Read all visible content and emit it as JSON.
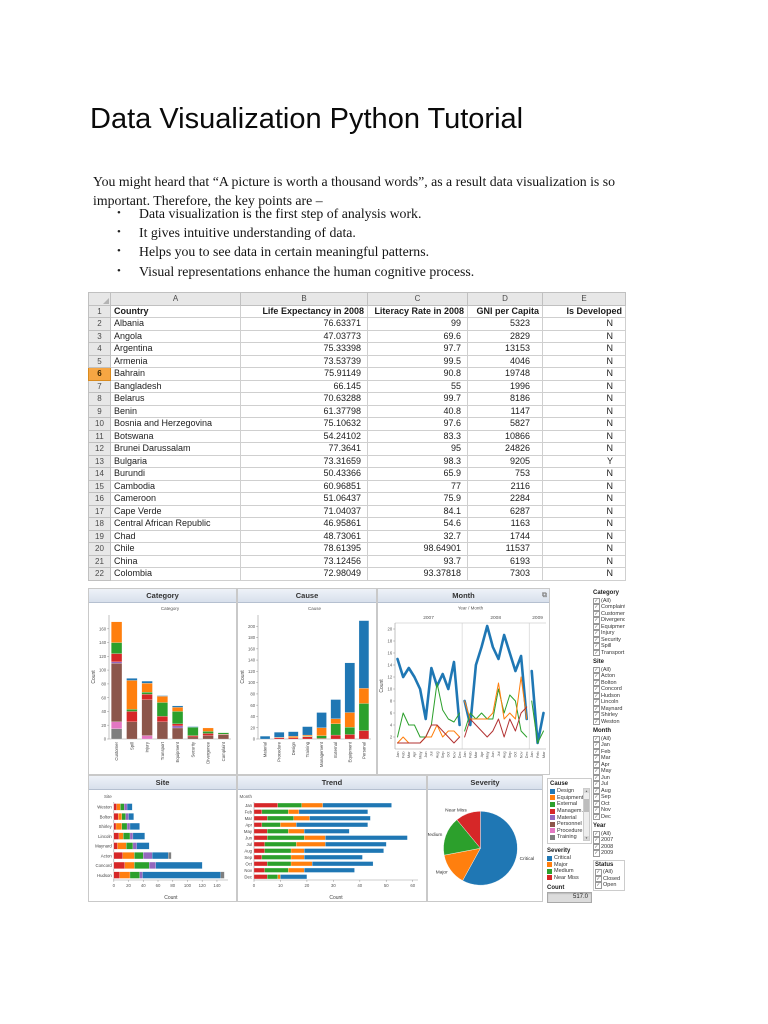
{
  "page": {
    "title": "Data Visualization Python Tutorial",
    "intro": "You might heard that “A picture is worth a thousand words”, as a result data visualization is so important. Therefore, the key points are –",
    "bullets": [
      "Data visualization is the first step of analysis work.",
      "It gives intuitive understanding of data.",
      "Helps you to see data in certain meaningful patterns.",
      "Visual representations enhance the human cognitive process."
    ]
  },
  "spreadsheet": {
    "column_letters": [
      "A",
      "B",
      "C",
      "D",
      "E"
    ],
    "headers": [
      "Country",
      "Life Expectancy in 2008",
      "Literacy Rate in 2008",
      "GNI per Capita",
      "Is Developed"
    ],
    "highlight_row": 6,
    "rows": [
      [
        "Albania",
        "76.63371",
        "99",
        "5323",
        "N"
      ],
      [
        "Angola",
        "47.03773",
        "69.6",
        "2829",
        "N"
      ],
      [
        "Argentina",
        "75.33398",
        "97.7",
        "13153",
        "N"
      ],
      [
        "Armenia",
        "73.53739",
        "99.5",
        "4046",
        "N"
      ],
      [
        "Bahrain",
        "75.91149",
        "90.8",
        "19748",
        "N"
      ],
      [
        "Bangladesh",
        "66.145",
        "55",
        "1996",
        "N"
      ],
      [
        "Belarus",
        "70.63288",
        "99.7",
        "8186",
        "N"
      ],
      [
        "Benin",
        "61.37798",
        "40.8",
        "1147",
        "N"
      ],
      [
        "Bosnia and Herzegovina",
        "75.10632",
        "97.6",
        "5827",
        "N"
      ],
      [
        "Botswana",
        "54.24102",
        "83.3",
        "10866",
        "N"
      ],
      [
        "Brunei Darussalam",
        "77.3641",
        "95",
        "24826",
        "N"
      ],
      [
        "Bulgaria",
        "73.31659",
        "98.3",
        "9205",
        "Y"
      ],
      [
        "Burundi",
        "50.43366",
        "65.9",
        "753",
        "N"
      ],
      [
        "Cambodia",
        "60.96851",
        "77",
        "2116",
        "N"
      ],
      [
        "Cameroon",
        "51.06437",
        "75.9",
        "2284",
        "N"
      ],
      [
        "Cape Verde",
        "71.04037",
        "84.1",
        "6287",
        "N"
      ],
      [
        "Central African Republic",
        "46.95861",
        "54.6",
        "1163",
        "N"
      ],
      [
        "Chad",
        "48.73061",
        "32.7",
        "1744",
        "N"
      ],
      [
        "Chile",
        "78.61395",
        "98.64901",
        "11537",
        "N"
      ],
      [
        "China",
        "73.12456",
        "93.7",
        "6193",
        "N"
      ],
      [
        "Colombia",
        "72.98049",
        "93.37818",
        "7303",
        "N"
      ]
    ]
  },
  "chart_data": [
    {
      "id": "category",
      "type": "bar",
      "orientation": "vertical",
      "stacked": true,
      "title": "Category",
      "subtitle": "Category",
      "ylabel": "Count",
      "ymax": 180,
      "ytick": 20,
      "categories": [
        "Customer",
        "Spill",
        "Injury",
        "Transport",
        "Equipment",
        "Security",
        "Divergence",
        "Complaint"
      ],
      "series": [
        {
          "name": "Training",
          "color": "#7f7f7f",
          "values": [
            15,
            0,
            0,
            0,
            0,
            0,
            0,
            0
          ]
        },
        {
          "name": "Procedure",
          "color": "#e377c2",
          "values": [
            10,
            0,
            5,
            0,
            0,
            0,
            0,
            0
          ]
        },
        {
          "name": "Personnel",
          "color": "#8c564b",
          "values": [
            85,
            25,
            52,
            25,
            16,
            3,
            5,
            6
          ]
        },
        {
          "name": "Material",
          "color": "#9467bd",
          "values": [
            2,
            0,
            0,
            0,
            3,
            0,
            0,
            0
          ]
        },
        {
          "name": "Management",
          "color": "#d62728",
          "values": [
            12,
            15,
            8,
            8,
            3,
            2,
            3,
            1
          ]
        },
        {
          "name": "External",
          "color": "#2ca02c",
          "values": [
            16,
            3,
            3,
            20,
            18,
            12,
            3,
            2
          ]
        },
        {
          "name": "Equipment",
          "color": "#ff7f0e",
          "values": [
            30,
            42,
            13,
            9,
            6,
            0,
            5,
            0
          ]
        },
        {
          "name": "Design",
          "color": "#1f77b4",
          "values": [
            0,
            3,
            3,
            1,
            2,
            1,
            0,
            0
          ]
        }
      ]
    },
    {
      "id": "cause",
      "type": "bar",
      "orientation": "vertical",
      "stacked": true,
      "title": "Cause",
      "subtitle": "Cause",
      "ylabel": "Count",
      "ymax": 220,
      "ytick": 20,
      "categories": [
        "Material",
        "Procedure",
        "Design",
        "Training",
        "Management",
        "External",
        "Equipment",
        "Personal"
      ],
      "series": [
        {
          "name": "Near Miss",
          "color": "#d62728",
          "values": [
            0,
            2,
            2,
            4,
            1,
            7,
            8,
            15
          ]
        },
        {
          "name": "Medium",
          "color": "#2ca02c",
          "values": [
            0,
            0,
            0,
            1,
            5,
            20,
            13,
            48
          ]
        },
        {
          "name": "Major",
          "color": "#ff7f0e",
          "values": [
            0,
            1,
            3,
            2,
            14,
            9,
            26,
            27
          ]
        },
        {
          "name": "Critical",
          "color": "#1f77b4",
          "values": [
            5,
            9,
            8,
            15,
            27,
            34,
            88,
            120
          ]
        }
      ]
    },
    {
      "id": "month",
      "type": "line",
      "title": "Month",
      "subtitle": "Year  /  Month",
      "ylabel": "Count",
      "ymax": 21,
      "ytick": 2,
      "panels": [
        {
          "year": "2007",
          "x": [
            "Jan",
            "Feb",
            "Mar",
            "Apr",
            "May",
            "Jun",
            "Jul",
            "Aug",
            "Sep",
            "Oct",
            "Nov",
            "Dec"
          ],
          "series": [
            {
              "name": "Critical",
              "color": "#1f77b4",
              "width": 2.6,
              "values": [
                15,
                12,
                13.5,
                12,
                10,
                5,
                13.5,
                10.5,
                12.5,
                10,
                14.5,
                4
              ]
            },
            {
              "name": "Medium",
              "color": "#2ca02c",
              "width": 1,
              "values": [
                2,
                6,
                4,
                4,
                2,
                2,
                4,
                11,
                6.5,
                5,
                4.5,
                6
              ]
            },
            {
              "name": "Major",
              "color": "#ff7f0e",
              "width": 1,
              "values": [
                1,
                2,
                1,
                1,
                1,
                2,
                2,
                4,
                2,
                3,
                3,
                2
              ]
            },
            {
              "name": "Near Miss",
              "color": "#b23232",
              "width": 1,
              "values": [
                1,
                1,
                1,
                1,
                1,
                2,
                4,
                4,
                3,
                2,
                1,
                2
              ]
            }
          ]
        },
        {
          "year": "2008",
          "x": [
            "Jan",
            "Feb",
            "Mar",
            "Apr",
            "May",
            "Jun",
            "Jul",
            "Aug",
            "Sep",
            "Oct",
            "Nov",
            "Dec"
          ],
          "series": [
            {
              "name": "Critical",
              "color": "#1f77b4",
              "width": 2.6,
              "values": [
                8,
                4,
                14,
                17,
                20.5,
                17,
                15,
                19,
                16,
                13,
                15.5,
                5
              ]
            },
            {
              "name": "Medium",
              "color": "#2ca02c",
              "width": 1,
              "values": [
                3,
                6,
                5,
                6,
                5,
                5,
                10,
                6,
                9,
                8,
                3,
                2
              ]
            },
            {
              "name": "Major",
              "color": "#ff7f0e",
              "width": 1,
              "values": [
                8,
                5,
                5,
                5,
                5,
                6,
                11,
                5,
                6,
                5,
                12,
                5
              ]
            },
            {
              "name": "Near Miss",
              "color": "#b23232",
              "width": 1,
              "values": [
                2,
                5,
                4,
                3,
                2,
                3,
                5,
                2,
                5,
                3,
                6,
                7
              ]
            }
          ]
        },
        {
          "year": "2009",
          "x": [
            "Jan",
            "Feb",
            "Mar"
          ],
          "series": [
            {
              "name": "Critical",
              "color": "#1f77b4",
              "width": 2.6,
              "values": [
                13,
                1,
                6
              ]
            },
            {
              "name": "Medium",
              "color": "#2ca02c",
              "width": 1,
              "values": [
                8,
                1,
                3
              ]
            }
          ]
        }
      ]
    },
    {
      "id": "site",
      "type": "bar",
      "orientation": "horizontal",
      "stacked": true,
      "title": "Site",
      "dim_label": "Site",
      "xlabel": "Count",
      "xmax": 155,
      "xtick": 20,
      "categories": [
        "Weston",
        "Bolton",
        "Shirley",
        "Lincoln",
        "Maynard",
        "Acton",
        "Concord",
        "Hudson"
      ],
      "series": [
        {
          "name": "Management",
          "color": "#d62728",
          "values": [
            4,
            6,
            3,
            7,
            5,
            12,
            15,
            8
          ]
        },
        {
          "name": "Equipment",
          "color": "#ff7f0e",
          "values": [
            5,
            5,
            8,
            6,
            12,
            16,
            13,
            14
          ]
        },
        {
          "name": "External",
          "color": "#2ca02c",
          "values": [
            5,
            5,
            7,
            9,
            9,
            12,
            20,
            13
          ]
        },
        {
          "name": "Material",
          "color": "#9467bd",
          "values": [
            4,
            4,
            4,
            4,
            5,
            12,
            9,
            4
          ]
        },
        {
          "name": "Design",
          "color": "#1f77b4",
          "values": [
            7,
            7,
            13,
            16,
            17,
            22,
            63,
            106
          ]
        },
        {
          "name": "Training",
          "color": "#7f7f7f",
          "values": [
            0,
            0,
            0,
            0,
            0,
            4,
            0,
            5
          ]
        }
      ]
    },
    {
      "id": "trend",
      "type": "bar",
      "orientation": "horizontal",
      "stacked": true,
      "title": "Trend",
      "dim_label": "Month",
      "xlabel": "Count",
      "xmax": 62,
      "xtick": 10,
      "categories": [
        "Jan",
        "Feb",
        "Mar",
        "Apr",
        "May",
        "Jun",
        "Jul",
        "Aug",
        "Sep",
        "Oct",
        "Nov",
        "Dec"
      ],
      "series": [
        {
          "name": "Near Miss",
          "color": "#d62728",
          "values": [
            9,
            3,
            5,
            3,
            5,
            5,
            4,
            4,
            3,
            5,
            4,
            5
          ]
        },
        {
          "name": "Medium",
          "color": "#2ca02c",
          "values": [
            9,
            10,
            10,
            7,
            8,
            14,
            12,
            10,
            11,
            9,
            9,
            4
          ]
        },
        {
          "name": "Major",
          "color": "#ff7f0e",
          "values": [
            8,
            4,
            6,
            6,
            6,
            8,
            11,
            5,
            5,
            8,
            6,
            1
          ]
        },
        {
          "name": "Critical",
          "color": "#1f77b4",
          "values": [
            26,
            26,
            23,
            27,
            17,
            31,
            23,
            30,
            22,
            23,
            19,
            10
          ]
        }
      ]
    },
    {
      "id": "severity",
      "type": "pie",
      "title": "Severity",
      "slices": [
        {
          "label": "Critical",
          "value": 58,
          "color": "#1f77b4"
        },
        {
          "label": "Major",
          "value": 14,
          "color": "#ff7f0e"
        },
        {
          "label": "Medium",
          "value": 17,
          "color": "#2ca02c"
        },
        {
          "label": "Near Miss",
          "value": 11,
          "color": "#d62728"
        }
      ]
    }
  ],
  "legends": {
    "cause": {
      "title": "Cause",
      "items": [
        {
          "label": "Design",
          "color": "#1f77b4"
        },
        {
          "label": "Equipment",
          "color": "#ff7f0e"
        },
        {
          "label": "External",
          "color": "#2ca02c"
        },
        {
          "label": "Managem...",
          "color": "#d62728"
        },
        {
          "label": "Material",
          "color": "#9467bd"
        },
        {
          "label": "Personnel",
          "color": "#8c564b"
        },
        {
          "label": "Procedure",
          "color": "#e377c2"
        },
        {
          "label": "Training",
          "color": "#7f7f7f"
        }
      ]
    },
    "severity": {
      "title": "Severity",
      "items": [
        {
          "label": "Critical",
          "color": "#1f77b4"
        },
        {
          "label": "Major",
          "color": "#ff7f0e"
        },
        {
          "label": "Medium",
          "color": "#2ca02c"
        },
        {
          "label": "Near Miss",
          "color": "#d62728"
        }
      ]
    },
    "count": {
      "label": "Count",
      "value": "517.0"
    }
  },
  "filters": [
    {
      "title": "Category",
      "boxed": false,
      "items": [
        "(All)",
        "Complaint",
        "Customer",
        "Divergence",
        "Equipment",
        "Injury",
        "Security",
        "Spill",
        "Transport"
      ]
    },
    {
      "title": "Site",
      "boxed": false,
      "items": [
        "(All)",
        "Acton",
        "Bolton",
        "Concord",
        "Hudson",
        "Lincoln",
        "Maynard",
        "Shirley",
        "Weston"
      ]
    },
    {
      "title": "Month",
      "boxed": false,
      "items": [
        "(All)",
        "Jan",
        "Feb",
        "Mar",
        "Apr",
        "May",
        "Jun",
        "Jul",
        "Aug",
        "Sep",
        "Oct",
        "Nov",
        "Dec"
      ]
    },
    {
      "title": "Year",
      "boxed": false,
      "items": [
        "(All)",
        "2007",
        "2008",
        "2009"
      ]
    },
    {
      "title": "Status",
      "boxed": true,
      "items": [
        "(All)",
        "Closed",
        "Open"
      ]
    }
  ]
}
